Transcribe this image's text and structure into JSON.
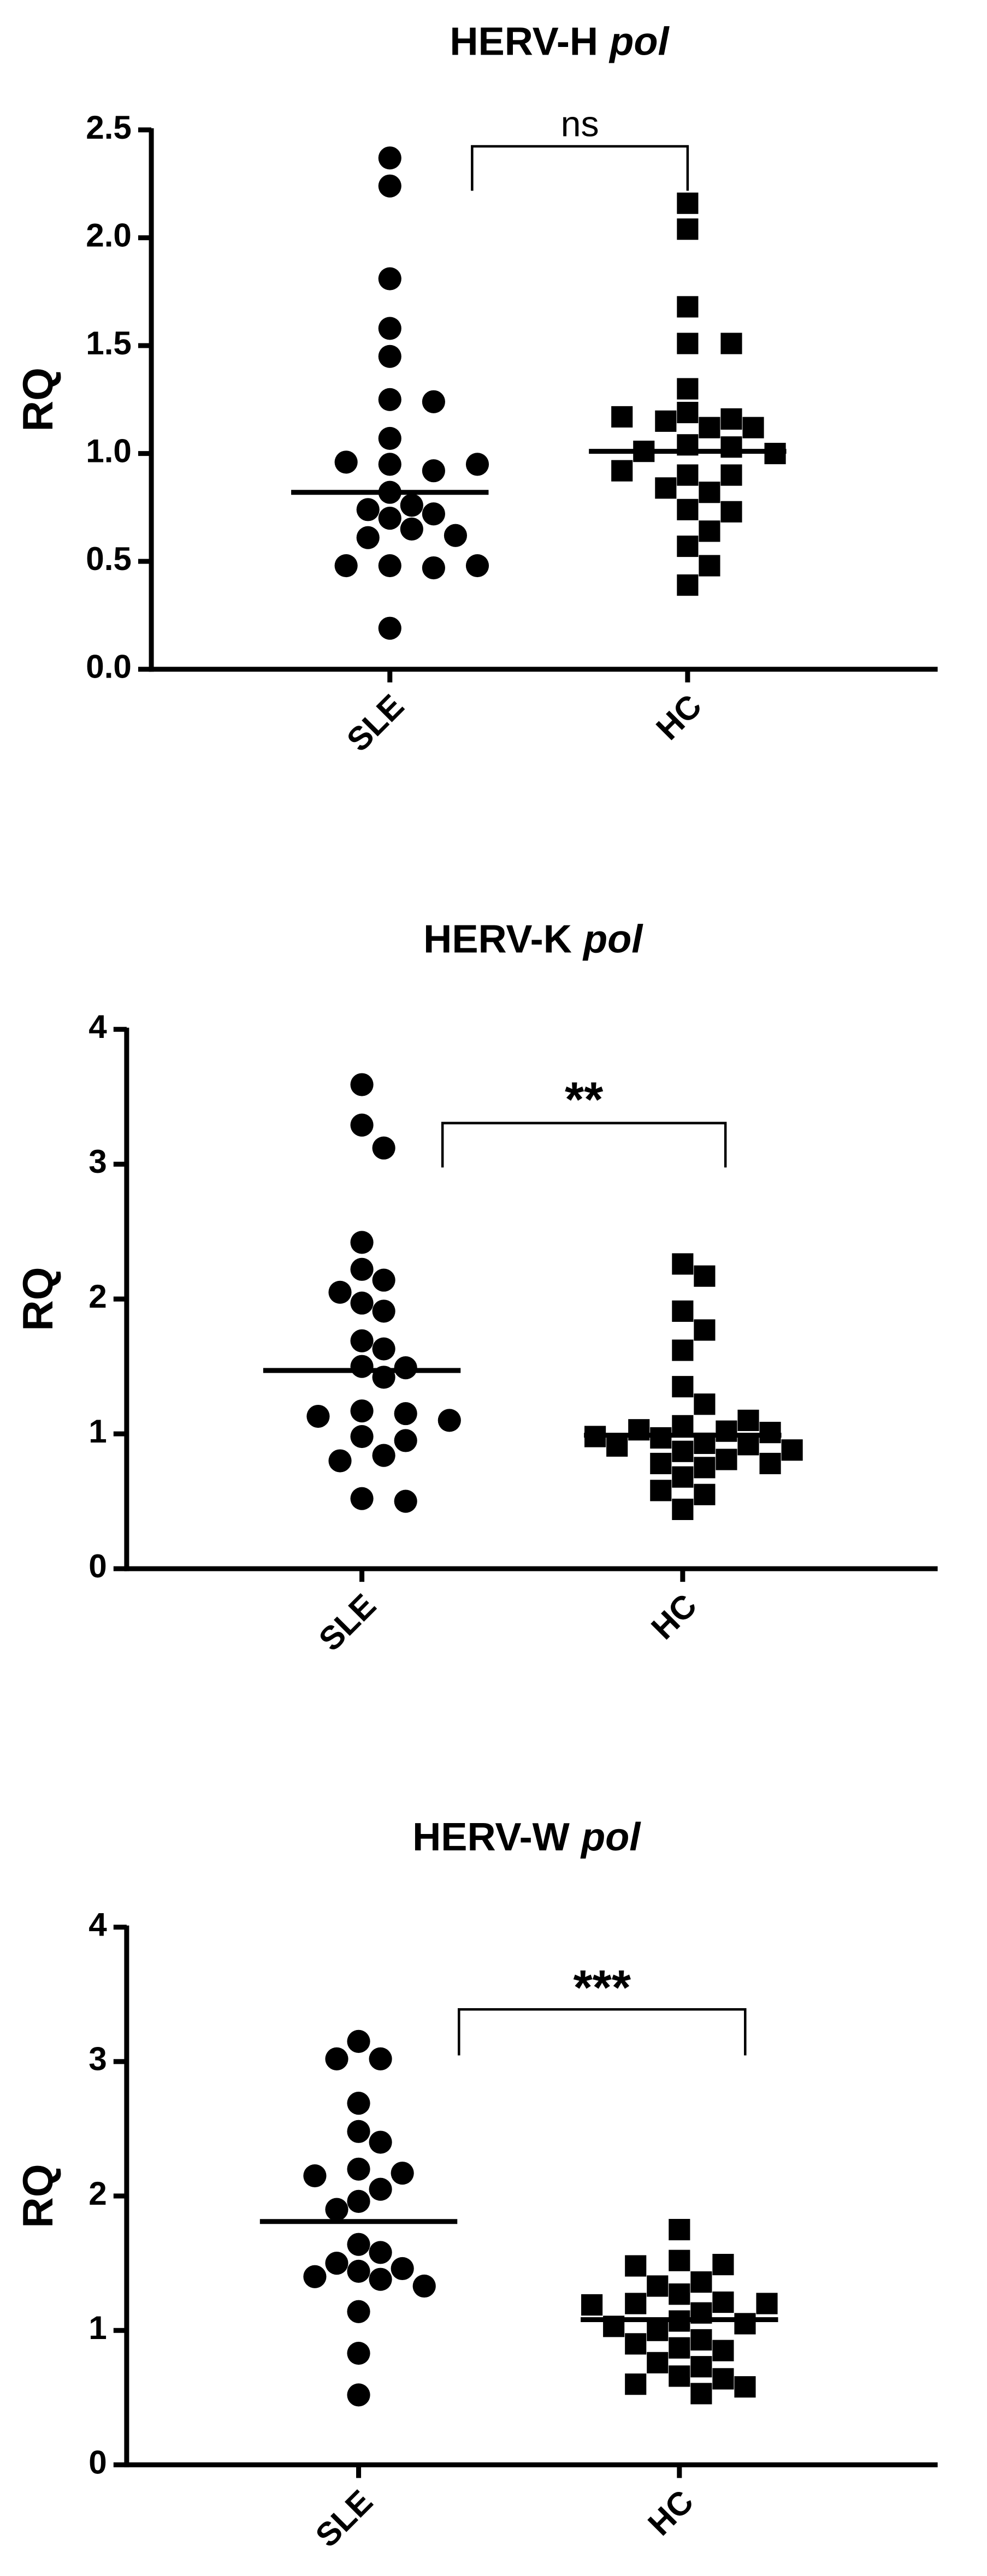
{
  "chart_data": [
    {
      "type": "strip",
      "title": {
        "text": "HERV-H",
        "italic": "pol"
      },
      "ylabel": "RQ",
      "annotation": "ns",
      "ylim": [
        0,
        2.5
      ],
      "yticks": [
        {
          "value": 0,
          "label": "0.0"
        },
        0.5,
        {
          "value": 1,
          "label": "1.0"
        },
        1.5,
        {
          "value": 2,
          "label": "2.0"
        },
        2.5
      ],
      "color": "#000000",
      "categories": [
        "SLE",
        "HC"
      ],
      "groups": [
        {
          "marker": "circle",
          "median": 0.82,
          "values": [
            2.37,
            2.24,
            1.81,
            1.58,
            1.45,
            1.25,
            1.24,
            1.07,
            0.95,
            0.92,
            0.96,
            0.95,
            0.82,
            0.76,
            0.74,
            0.72,
            0.7,
            0.65,
            0.61,
            0.62,
            0.48,
            0.47,
            0.48,
            0.48,
            0.19
          ]
        },
        {
          "marker": "square",
          "median": 1.01,
          "values": [
            2.16,
            2.04,
            1.68,
            1.51,
            1.51,
            1.3,
            1.19,
            1.16,
            1.15,
            1.17,
            1.12,
            1.12,
            1.04,
            1.03,
            1.01,
            1.0,
            0.9,
            0.9,
            0.92,
            0.82,
            0.84,
            0.74,
            0.73,
            0.64,
            0.57,
            0.48,
            0.39
          ]
        }
      ]
    },
    {
      "type": "strip",
      "title": {
        "text": "HERV-K",
        "italic": "pol"
      },
      "ylabel": "RQ",
      "annotation": "**",
      "ylim": [
        0,
        4
      ],
      "yticks": [
        0,
        1,
        2,
        3,
        4
      ],
      "color": "#000000",
      "categories": [
        "SLE",
        "HC"
      ],
      "groups": [
        {
          "marker": "circle",
          "median": 1.47,
          "values": [
            3.59,
            3.29,
            3.12,
            2.42,
            2.22,
            2.14,
            2.05,
            1.97,
            1.91,
            1.69,
            1.63,
            1.5,
            1.49,
            1.42,
            1.17,
            1.15,
            1.13,
            1.1,
            0.98,
            0.95,
            0.84,
            0.8,
            0.52,
            0.5
          ]
        },
        {
          "marker": "square",
          "median": 0.99,
          "values": [
            2.26,
            2.17,
            1.91,
            1.77,
            1.62,
            1.35,
            1.22,
            1.06,
            1.02,
            1.03,
            1.01,
            1.1,
            0.98,
            0.97,
            0.93,
            0.92,
            0.91,
            0.88,
            0.87,
            0.81,
            0.78,
            0.78,
            0.75,
            0.68,
            0.58,
            0.55,
            0.44
          ]
        }
      ]
    },
    {
      "type": "strip",
      "title": {
        "text": "HERV-W",
        "italic": "pol"
      },
      "ylabel": "RQ",
      "annotation": "***",
      "ylim": [
        0,
        4
      ],
      "yticks": [
        0,
        1,
        2,
        3,
        4
      ],
      "color": "#000000",
      "categories": [
        "SLE",
        "HC"
      ],
      "groups": [
        {
          "marker": "circle",
          "median": 1.81,
          "values": [
            3.15,
            3.02,
            3.02,
            2.69,
            2.48,
            2.4,
            2.2,
            2.17,
            2.15,
            2.05,
            1.96,
            1.9,
            1.64,
            1.58,
            1.5,
            1.46,
            1.44,
            1.4,
            1.38,
            1.33,
            1.14,
            0.83,
            0.52
          ]
        },
        {
          "marker": "square",
          "median": 1.08,
          "values": [
            1.75,
            1.52,
            1.49,
            1.48,
            1.36,
            1.33,
            1.27,
            1.21,
            1.2,
            1.2,
            1.19,
            1.13,
            1.07,
            1.05,
            1.03,
            1.0,
            0.93,
            0.9,
            0.87,
            0.85,
            0.76,
            0.73,
            0.66,
            0.64,
            0.6,
            0.58,
            0.53
          ]
        }
      ]
    }
  ]
}
